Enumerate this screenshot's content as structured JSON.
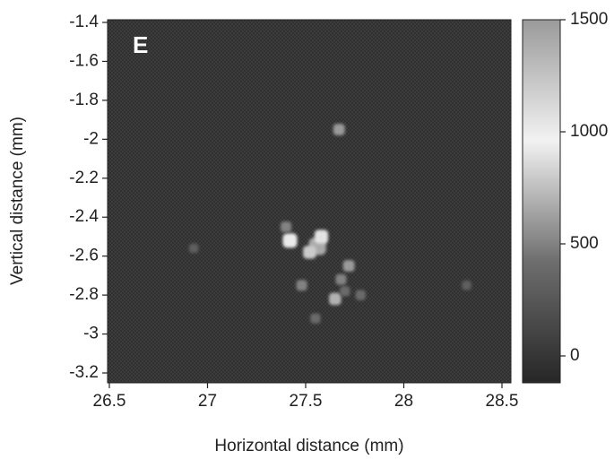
{
  "chart_data": {
    "type": "heatmap",
    "panel_label": "E",
    "xlabel": "Horizontal distance (mm)",
    "ylabel": "Vertical distance (mm)",
    "xlim": [
      26.5,
      28.5
    ],
    "xticks": [
      26.5,
      27,
      27.5,
      28,
      28.5
    ],
    "ylim": [
      -3.2,
      -1.4
    ],
    "yticks": [
      -3.2,
      -3,
      -2.8,
      -2.6,
      -2.4,
      -2.2,
      -2,
      -1.8,
      -1.6,
      -1.4
    ],
    "clim": [
      -120,
      1500
    ],
    "cticks": [
      0,
      500,
      1000,
      1500
    ],
    "colormap": [
      "#262626",
      "#6e6e6e",
      "#f2f2f2",
      "#9a9a9a"
    ],
    "x": [
      27.67,
      27.42,
      27.56,
      27.58,
      27.52,
      27.4,
      27.72,
      27.68,
      27.65,
      27.48,
      27.55,
      27.78,
      27.7,
      26.93,
      28.32
    ],
    "y": [
      -1.95,
      -2.52,
      -2.55,
      -2.5,
      -2.58,
      -2.45,
      -2.65,
      -2.72,
      -2.82,
      -2.75,
      -2.92,
      -2.8,
      -2.78,
      -2.56,
      -2.75
    ],
    "values": [
      600,
      1000,
      1400,
      900,
      800,
      500,
      600,
      500,
      700,
      500,
      400,
      400,
      400,
      300,
      300
    ]
  }
}
